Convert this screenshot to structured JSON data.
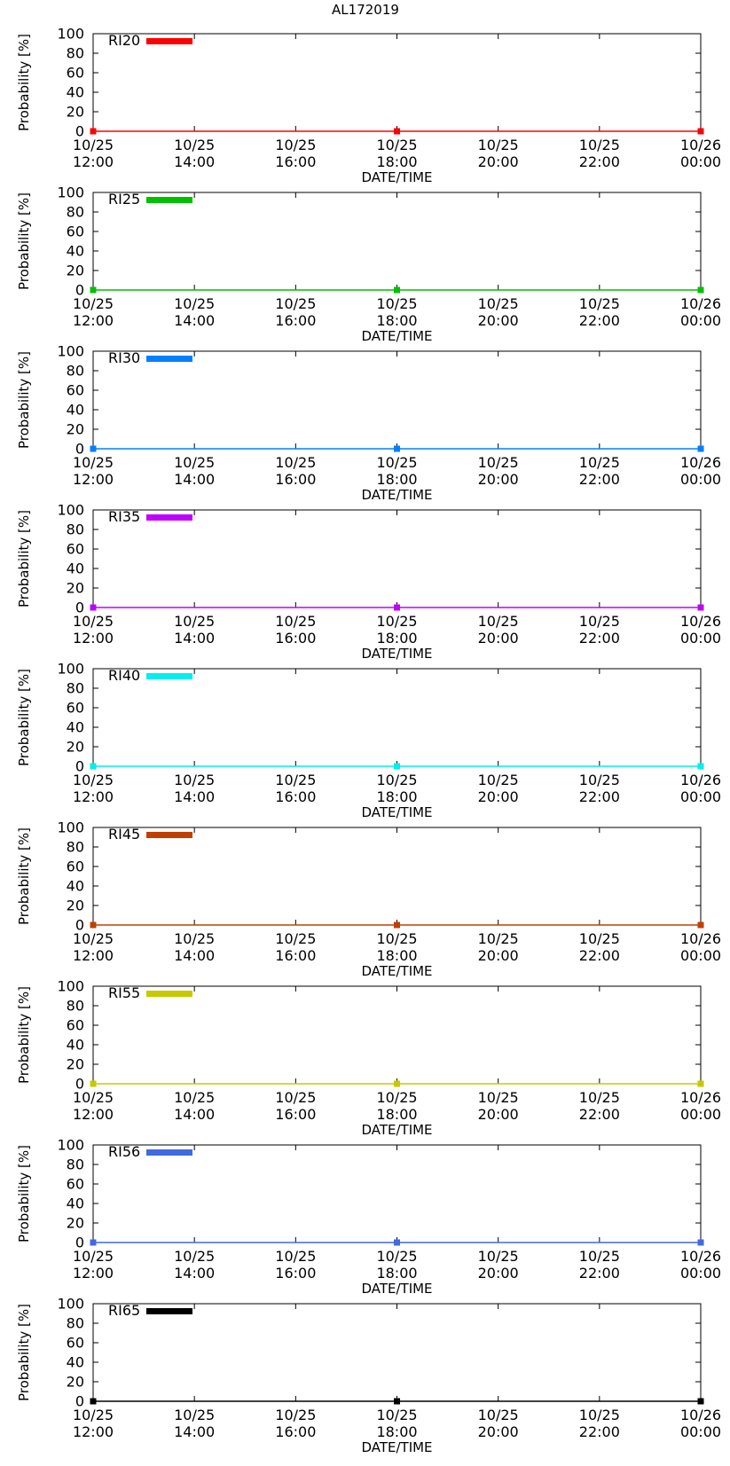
{
  "page_title": "AL172019",
  "chart_data": {
    "type": "line",
    "title": "AL172019",
    "xlabel": "DATE/TIME",
    "ylabel": "Probability [%]",
    "ylim": [
      0,
      100
    ],
    "yticks": [
      "0",
      "20",
      "40",
      "60",
      "80",
      "100"
    ],
    "xlim_hours": [
      0,
      12
    ],
    "xticks": [
      {
        "hour": 0,
        "date": "10/25",
        "time": "12:00"
      },
      {
        "hour": 2,
        "date": "10/25",
        "time": "14:00"
      },
      {
        "hour": 4,
        "date": "10/25",
        "time": "16:00"
      },
      {
        "hour": 6,
        "date": "10/25",
        "time": "18:00"
      },
      {
        "hour": 8,
        "date": "10/25",
        "time": "20:00"
      },
      {
        "hour": 10,
        "date": "10/25",
        "time": "22:00"
      },
      {
        "hour": 12,
        "date": "10/26",
        "time": "00:00"
      }
    ],
    "legend_position": "top-left",
    "series": [
      {
        "name": "RI20",
        "color": "#ff0000",
        "x_hours": [
          0,
          6,
          12
        ],
        "values": [
          0,
          0,
          0
        ]
      },
      {
        "name": "RI25",
        "color": "#00c000",
        "x_hours": [
          0,
          6,
          12
        ],
        "values": [
          0,
          0,
          0
        ]
      },
      {
        "name": "RI30",
        "color": "#0080ff",
        "x_hours": [
          0,
          6,
          12
        ],
        "values": [
          0,
          0,
          0
        ]
      },
      {
        "name": "RI35",
        "color": "#c000ff",
        "x_hours": [
          0,
          6,
          12
        ],
        "values": [
          0,
          0,
          0
        ]
      },
      {
        "name": "RI40",
        "color": "#00eeee",
        "x_hours": [
          0,
          6,
          12
        ],
        "values": [
          0,
          0,
          0
        ]
      },
      {
        "name": "RI45",
        "color": "#c04000",
        "x_hours": [
          0,
          6,
          12
        ],
        "values": [
          0,
          0,
          0
        ]
      },
      {
        "name": "RI55",
        "color": "#c8c800",
        "x_hours": [
          0,
          6,
          12
        ],
        "values": [
          0,
          0,
          0
        ]
      },
      {
        "name": "RI56",
        "color": "#4169e1",
        "x_hours": [
          0,
          6,
          12
        ],
        "values": [
          0,
          0,
          0
        ]
      },
      {
        "name": "RI65",
        "color": "#000000",
        "x_hours": [
          0,
          6,
          12
        ],
        "values": [
          0,
          0,
          0
        ]
      }
    ]
  }
}
